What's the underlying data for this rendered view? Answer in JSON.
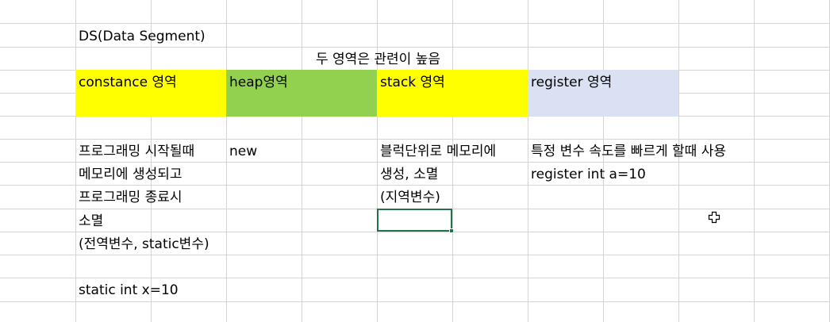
{
  "sheet": {
    "title_cell": "DS(Data Segment)",
    "relation_note": "두 영역은 관련이 높음",
    "headers": {
      "constance": "constance 영역",
      "heap": "heap영역",
      "stack": "stack 영역",
      "register": "register 영역"
    },
    "constance_desc": [
      "프로그래밍 시작될때",
      "메모리에 생성되고",
      "프로그래밍 종료시",
      "소멸",
      "(전역변수, static변수)"
    ],
    "heap_desc": "new",
    "stack_desc": [
      "블럭단위로 메모리에",
      "생성, 소멸",
      "(지역변수)"
    ],
    "register_desc": [
      "특정 변수 속도를 빠르게 할때 사용",
      "register int a=10"
    ],
    "static_example": "static int x=10"
  },
  "colors": {
    "constance_fill": "#ffff00",
    "heap_fill": "#92d050",
    "stack_fill": "#ffff00",
    "register_fill": "#d9e1f2",
    "selection_border": "#217346",
    "gridline": "#d4d4d4"
  },
  "icons": {
    "cursor": "cell-select-cursor-icon"
  }
}
